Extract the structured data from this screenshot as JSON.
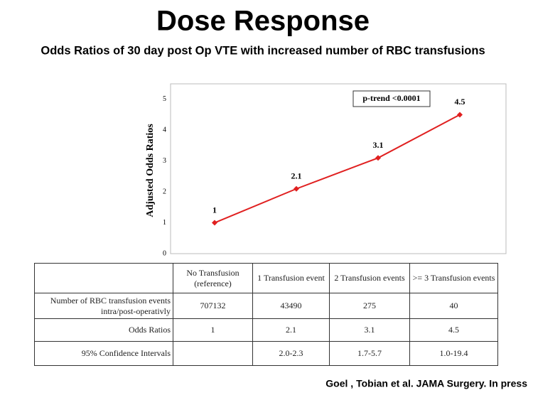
{
  "chart_data": {
    "type": "line",
    "title": "Dose Response",
    "subtitle": "Odds Ratios of 30 day post Op VTE with increased number of RBC transfusions",
    "y_label": "Adjusted Odds Ratios",
    "annotation": "p-trend <0.0001",
    "categories": [
      "No Transfusion (reference)",
      "1 Transfusion event",
      "2 Transfusion events",
      ">= 3 Transfusion events"
    ],
    "values": [
      1,
      2.1,
      3.1,
      4.5
    ],
    "color": "#e02020",
    "ylim": [
      0,
      5.5
    ],
    "yticks": [
      0,
      1,
      2,
      3,
      4,
      5
    ],
    "grid": false,
    "source": "Goel , Tobian et al. JAMA Surgery. In press"
  },
  "table": {
    "rows": [
      {
        "label": "Number of RBC transfusion events intra/post-operativly",
        "values": [
          707132,
          43490,
          275,
          40
        ]
      },
      {
        "label": "Odds Ratios"
      },
      {
        "label": "95% Confidence Intervals",
        "values": [
          null,
          "2.0-2.3",
          "1.7-5.7",
          "1.0-19.4"
        ]
      }
    ]
  }
}
